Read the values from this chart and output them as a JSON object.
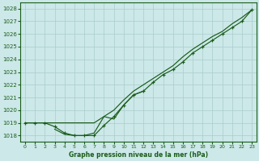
{
  "title": "Graphe pression niveau de la mer (hPa)",
  "bg_color": "#cce8e8",
  "grid_color": "#aacccc",
  "line_color": "#1a5c1a",
  "xlim": [
    -0.5,
    23.5
  ],
  "ylim": [
    1017.5,
    1028.5
  ],
  "yticks": [
    1018,
    1019,
    1020,
    1021,
    1022,
    1023,
    1024,
    1025,
    1026,
    1027,
    1028
  ],
  "xticks": [
    0,
    1,
    2,
    3,
    4,
    5,
    6,
    7,
    8,
    9,
    10,
    11,
    12,
    13,
    14,
    15,
    16,
    17,
    18,
    19,
    20,
    21,
    22,
    23
  ],
  "line1_x": [
    0,
    1,
    2,
    3,
    4,
    5,
    6,
    7,
    8,
    9,
    10,
    11,
    12,
    13,
    14,
    15,
    16,
    17,
    18,
    19,
    20,
    21,
    22,
    23
  ],
  "line1_y": [
    1019.0,
    1019.0,
    1019.0,
    1019.0,
    1019.0,
    1019.0,
    1019.0,
    1019.0,
    1019.5,
    1020.0,
    1020.8,
    1021.5,
    1022.0,
    1022.5,
    1023.0,
    1023.5,
    1024.2,
    1024.8,
    1025.3,
    1025.8,
    1026.2,
    1026.8,
    1027.3,
    1027.9
  ],
  "line2_x": [
    0,
    1,
    2,
    3,
    4,
    5,
    6,
    7,
    8,
    9,
    10,
    11,
    12,
    13,
    14,
    15,
    16,
    17,
    18,
    19,
    20,
    21,
    22,
    23
  ],
  "line2_y": [
    1019.0,
    1019.0,
    1019.0,
    1018.7,
    1018.2,
    1018.0,
    1018.0,
    1018.0,
    1018.8,
    1019.5,
    1020.4,
    1021.2,
    1021.5,
    1022.2,
    1022.8,
    1023.2,
    1023.8,
    1024.5,
    1025.0,
    1025.5,
    1026.0,
    1026.5,
    1027.0,
    1027.9
  ],
  "line3_x": [
    3,
    4,
    5,
    6,
    7,
    8,
    9,
    10,
    11,
    12
  ],
  "line3_y": [
    1018.5,
    1018.1,
    1018.0,
    1018.0,
    1018.2,
    1019.5,
    1019.3,
    1020.4,
    1021.2,
    1021.5
  ]
}
